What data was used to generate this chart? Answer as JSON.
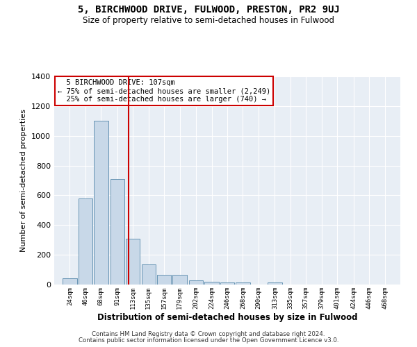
{
  "title": "5, BIRCHWOOD DRIVE, FULWOOD, PRESTON, PR2 9UJ",
  "subtitle": "Size of property relative to semi-detached houses in Fulwood",
  "xlabel": "Distribution of semi-detached houses by size in Fulwood",
  "ylabel": "Number of semi-detached properties",
  "footer1": "Contains HM Land Registry data © Crown copyright and database right 2024.",
  "footer2": "Contains public sector information licensed under the Open Government Licence v3.0.",
  "annotation_line1": "5 BIRCHWOOD DRIVE: 107sqm",
  "annotation_line2": "← 75% of semi-detached houses are smaller (2,249)",
  "annotation_line3": "25% of semi-detached houses are larger (740) →",
  "property_size": 107,
  "bins": [
    24,
    46,
    68,
    91,
    113,
    135,
    157,
    179,
    202,
    224,
    246,
    268,
    290,
    313,
    335,
    357,
    379,
    401,
    424,
    446,
    468
  ],
  "counts": [
    40,
    580,
    1100,
    710,
    310,
    135,
    65,
    65,
    30,
    20,
    15,
    15,
    0,
    15,
    0,
    0,
    0,
    0,
    0,
    0,
    0
  ],
  "bar_color": "#c8d8e8",
  "bar_edge_color": "#5588aa",
  "red_line_color": "#cc0000",
  "annotation_box_color": "#cc0000",
  "bg_color": "#e8eef5",
  "grid_color": "#ffffff",
  "ylim": [
    0,
    1400
  ],
  "yticks": [
    0,
    200,
    400,
    600,
    800,
    1000,
    1200,
    1400
  ]
}
